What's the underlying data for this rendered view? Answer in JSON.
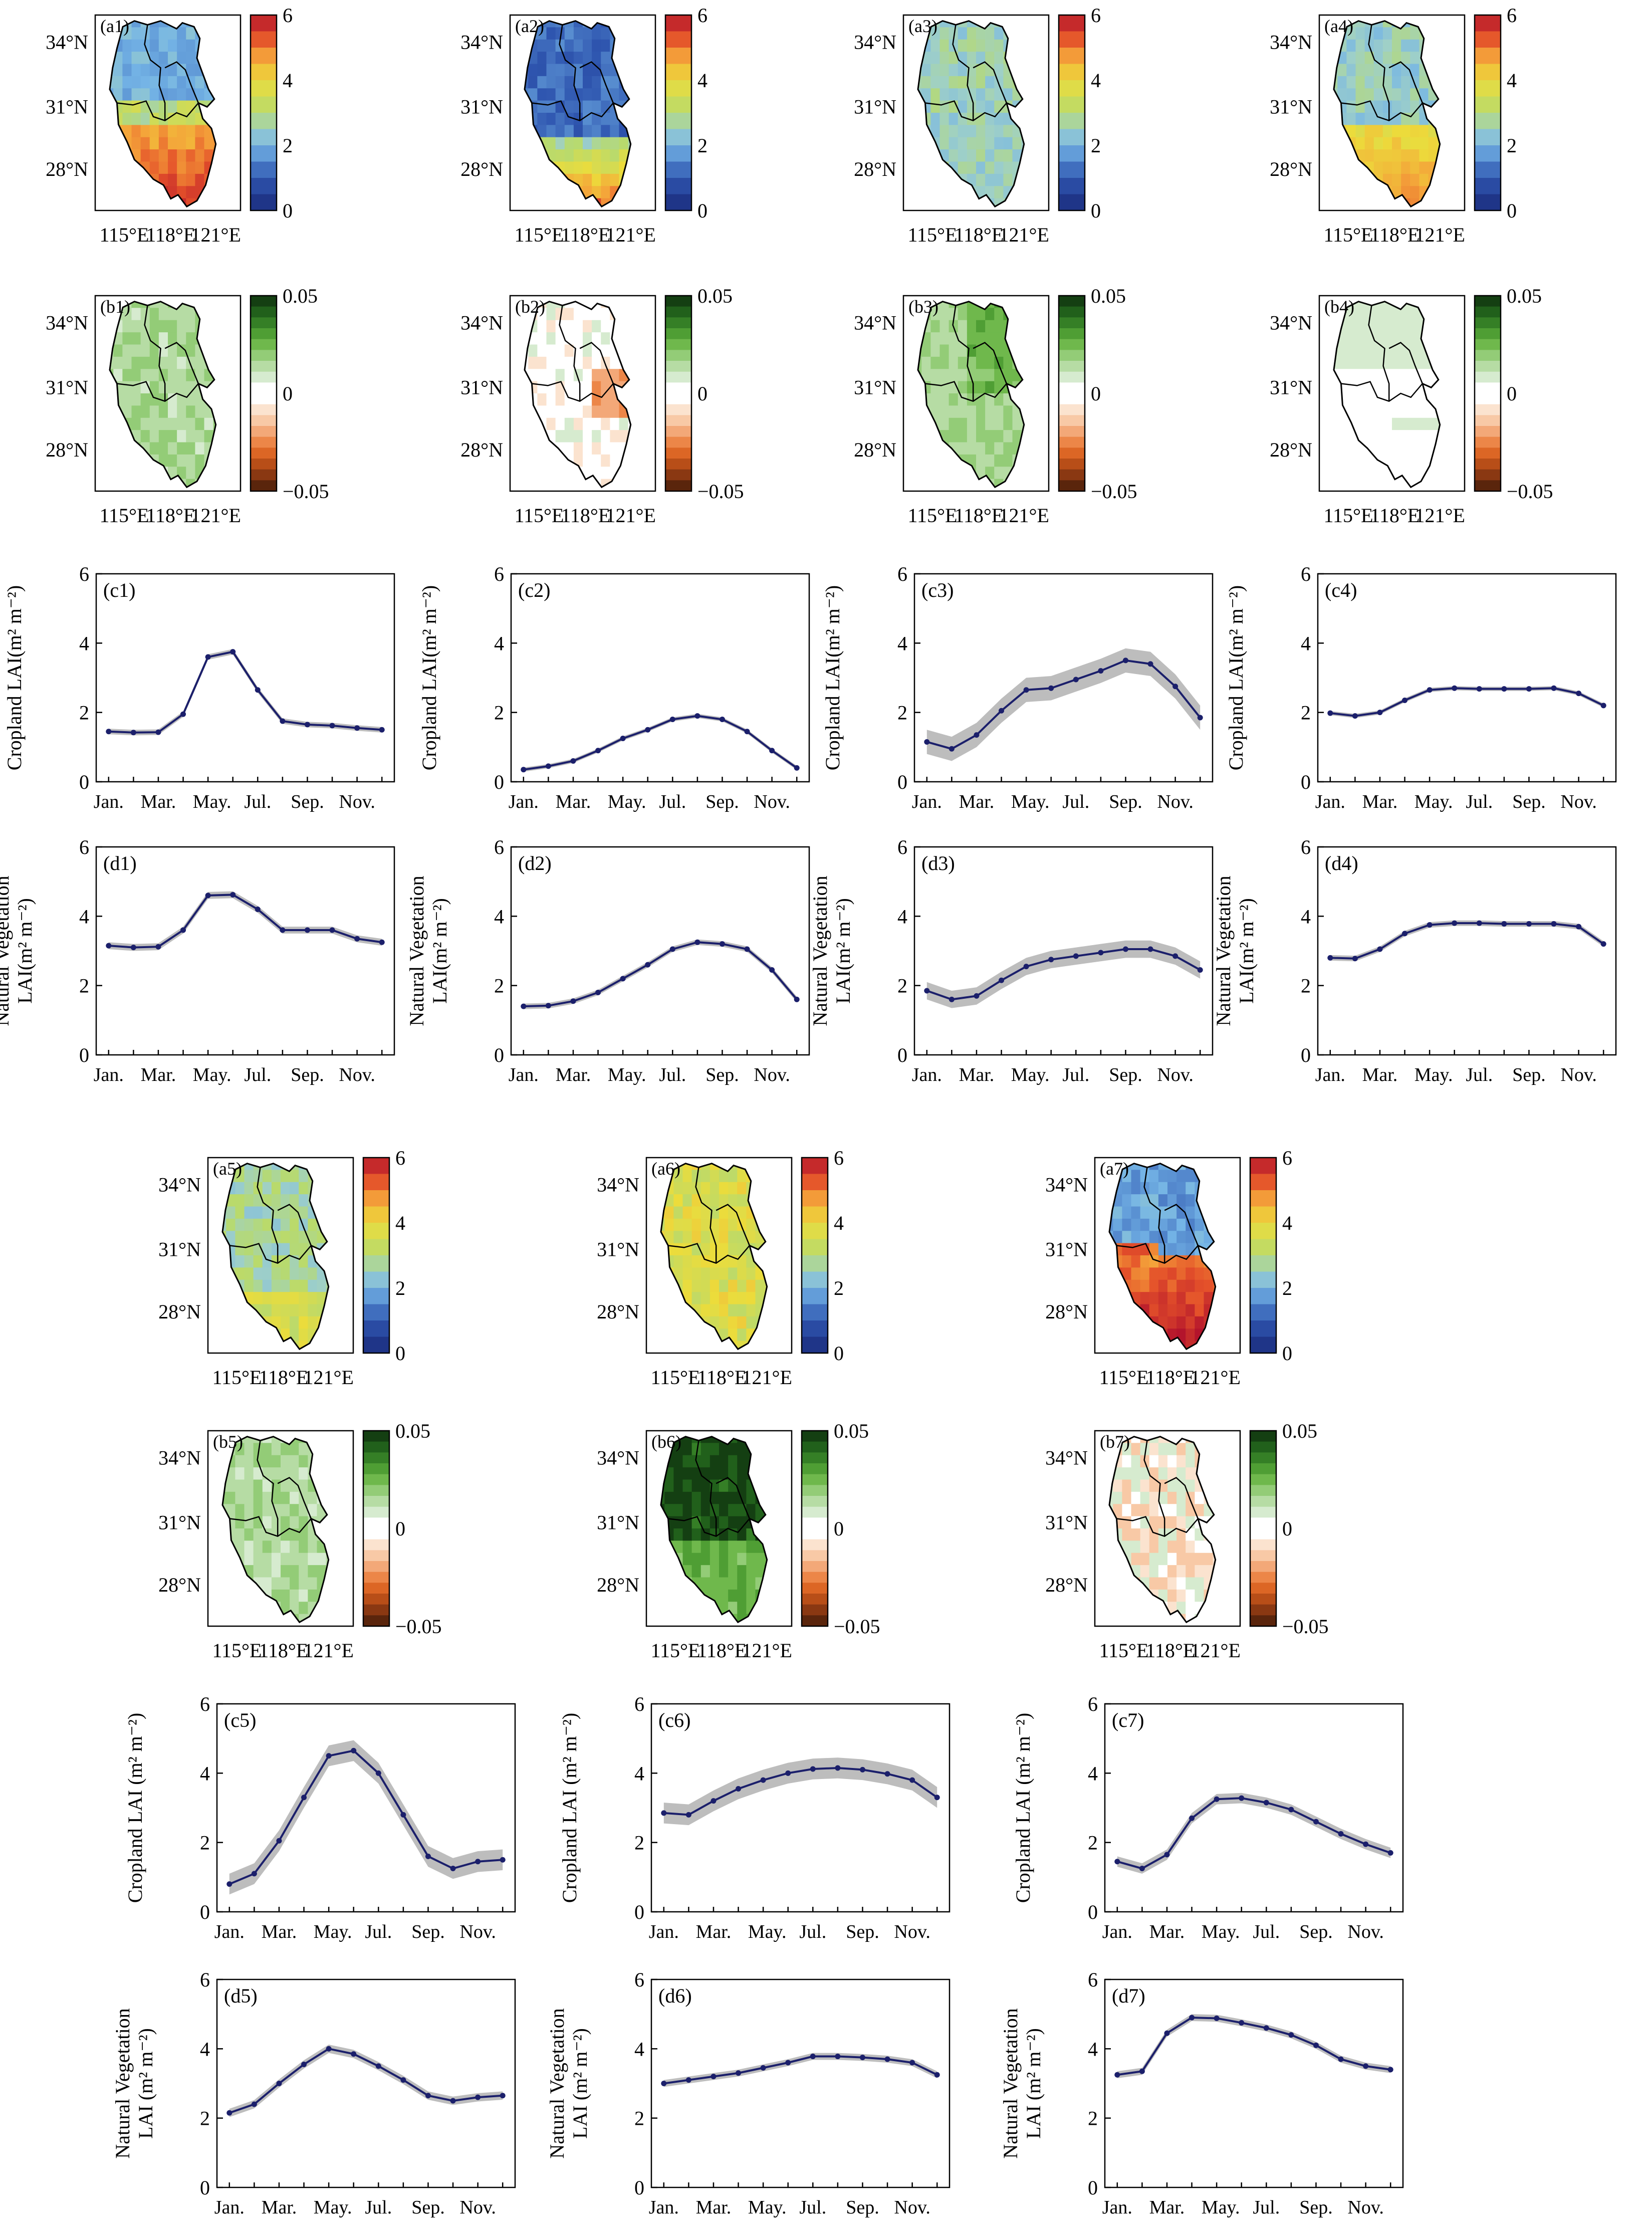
{
  "maps": {
    "lat_labels": [
      "34°N",
      "31°N",
      "28°N"
    ],
    "lon_labels": [
      "115°E",
      "118°E",
      "121°E"
    ],
    "lai_colorbar": {
      "ticks": [
        "0",
        "2",
        "4",
        "6"
      ],
      "range": [
        0,
        6
      ]
    },
    "trend_colorbar": {
      "ticks": [
        "0.05",
        "0",
        "−0.05"
      ],
      "range": [
        -0.05,
        0.05
      ]
    },
    "lai_panels": [
      {
        "label": "(a1)",
        "level": "high_south"
      },
      {
        "label": "(a2)",
        "level": "low_north"
      },
      {
        "label": "(a3)",
        "level": "uniform_low"
      },
      {
        "label": "(a4)",
        "level": "mid_south"
      },
      {
        "label": "(a5)",
        "level": "uniform_mid"
      },
      {
        "label": "(a6)",
        "level": "high_all"
      },
      {
        "label": "(a7)",
        "level": "very_high_south"
      }
    ],
    "trend_panels": [
      {
        "label": "(b1)",
        "pattern": "positive"
      },
      {
        "label": "(b2)",
        "pattern": "slight_negative"
      },
      {
        "label": "(b3)",
        "pattern": "positive_strong"
      },
      {
        "label": "(b4)",
        "pattern": "weak_positive"
      },
      {
        "label": "(b5)",
        "pattern": "positive"
      },
      {
        "label": "(b6)",
        "pattern": "very_positive"
      },
      {
        "label": "(b7)",
        "pattern": "negative"
      }
    ]
  },
  "chart_data": [
    {
      "type": "line",
      "label": "(c1)",
      "ylabel": "Cropland LAI(m² m⁻²)",
      "x_ticks": [
        "Jan.",
        "Mar.",
        "May.",
        "Jul.",
        "Sep.",
        "Nov."
      ],
      "y_ticks": [
        "0",
        "2",
        "4",
        "6"
      ],
      "ylim": [
        0,
        6
      ],
      "x": [
        1,
        2,
        3,
        4,
        5,
        6,
        7,
        8,
        9,
        10,
        11,
        12
      ],
      "values": [
        1.45,
        1.42,
        1.43,
        1.95,
        3.6,
        3.75,
        2.65,
        1.75,
        1.65,
        1.62,
        1.55,
        1.5
      ],
      "band": 0.08
    },
    {
      "type": "line",
      "label": "(c2)",
      "ylabel": "Cropland LAI(m² m⁻²)",
      "x_ticks": [
        "Jan.",
        "Mar.",
        "May.",
        "Jul.",
        "Sep.",
        "Nov."
      ],
      "y_ticks": [
        "0",
        "2",
        "4",
        "6"
      ],
      "ylim": [
        0,
        6
      ],
      "x": [
        1,
        2,
        3,
        4,
        5,
        6,
        7,
        8,
        9,
        10,
        11,
        12
      ],
      "values": [
        0.35,
        0.45,
        0.6,
        0.9,
        1.25,
        1.5,
        1.8,
        1.9,
        1.8,
        1.45,
        0.9,
        0.4
      ],
      "band": 0.06
    },
    {
      "type": "line",
      "label": "(c3)",
      "ylabel": "Cropland LAI(m² m⁻²)",
      "x_ticks": [
        "Jan.",
        "Mar.",
        "May.",
        "Jul.",
        "Sep.",
        "Nov."
      ],
      "y_ticks": [
        "0",
        "2",
        "4",
        "6"
      ],
      "ylim": [
        0,
        6
      ],
      "x": [
        1,
        2,
        3,
        4,
        5,
        6,
        7,
        8,
        9,
        10,
        11,
        12
      ],
      "values": [
        1.15,
        0.95,
        1.35,
        2.05,
        2.65,
        2.7,
        2.95,
        3.2,
        3.5,
        3.4,
        2.75,
        1.85
      ],
      "band": 0.35
    },
    {
      "type": "line",
      "label": "(c4)",
      "ylabel": "Cropland LAI(m² m⁻²)",
      "x_ticks": [
        "Jan.",
        "Mar.",
        "May.",
        "Jul.",
        "Sep.",
        "Nov."
      ],
      "y_ticks": [
        "0",
        "2",
        "4",
        "6"
      ],
      "ylim": [
        0,
        6
      ],
      "x": [
        1,
        2,
        3,
        4,
        5,
        6,
        7,
        8,
        9,
        10,
        11,
        12
      ],
      "values": [
        1.98,
        1.9,
        2.0,
        2.35,
        2.65,
        2.7,
        2.68,
        2.68,
        2.68,
        2.7,
        2.55,
        2.2
      ],
      "band": 0.06
    },
    {
      "type": "line",
      "label": "(d1)",
      "ylabel": [
        "Natural Vegetation",
        "LAI(m² m⁻²)"
      ],
      "x_ticks": [
        "Jan.",
        "Mar.",
        "May.",
        "Jul.",
        "Sep.",
        "Nov."
      ],
      "y_ticks": [
        "0",
        "2",
        "4",
        "6"
      ],
      "ylim": [
        0,
        6
      ],
      "x": [
        1,
        2,
        3,
        4,
        5,
        6,
        7,
        8,
        9,
        10,
        11,
        12
      ],
      "values": [
        3.15,
        3.1,
        3.12,
        3.6,
        4.6,
        4.62,
        4.2,
        3.6,
        3.6,
        3.6,
        3.35,
        3.25
      ],
      "band": 0.1
    },
    {
      "type": "line",
      "label": "(d2)",
      "ylabel": [
        "Natural Vegetation",
        "LAI(m² m⁻²)"
      ],
      "x_ticks": [
        "Jan.",
        "Mar.",
        "May.",
        "Jul.",
        "Sep.",
        "Nov."
      ],
      "y_ticks": [
        "0",
        "2",
        "4",
        "6"
      ],
      "ylim": [
        0,
        6
      ],
      "x": [
        1,
        2,
        3,
        4,
        5,
        6,
        7,
        8,
        9,
        10,
        11,
        12
      ],
      "values": [
        1.4,
        1.42,
        1.55,
        1.8,
        2.2,
        2.6,
        3.05,
        3.25,
        3.2,
        3.05,
        2.45,
        1.6
      ],
      "band": 0.08
    },
    {
      "type": "line",
      "label": "(d3)",
      "ylabel": [
        "Natural Vegetation",
        "LAI(m² m⁻²)"
      ],
      "x_ticks": [
        "Jan.",
        "Mar.",
        "May.",
        "Jul.",
        "Sep.",
        "Nov."
      ],
      "y_ticks": [
        "0",
        "2",
        "4",
        "6"
      ],
      "ylim": [
        0,
        6
      ],
      "x": [
        1,
        2,
        3,
        4,
        5,
        6,
        7,
        8,
        9,
        10,
        11,
        12
      ],
      "values": [
        1.85,
        1.6,
        1.7,
        2.15,
        2.55,
        2.75,
        2.85,
        2.95,
        3.05,
        3.05,
        2.85,
        2.45
      ],
      "band": 0.25
    },
    {
      "type": "line",
      "label": "(d4)",
      "ylabel": [
        "Natural Vegetation",
        "LAI(m² m⁻²)"
      ],
      "x_ticks": [
        "Jan.",
        "Mar.",
        "May.",
        "Jul.",
        "Sep.",
        "Nov."
      ],
      "y_ticks": [
        "0",
        "2",
        "4",
        "6"
      ],
      "ylim": [
        0,
        6
      ],
      "x": [
        1,
        2,
        3,
        4,
        5,
        6,
        7,
        8,
        9,
        10,
        11,
        12
      ],
      "values": [
        2.8,
        2.78,
        3.05,
        3.5,
        3.75,
        3.8,
        3.8,
        3.78,
        3.78,
        3.78,
        3.7,
        3.2
      ],
      "band": 0.08
    },
    {
      "type": "line",
      "label": "(c5)",
      "ylabel": "Cropland LAI (m² m⁻²)",
      "x_ticks": [
        "Jan.",
        "Mar.",
        "May.",
        "Jul.",
        "Sep.",
        "Nov."
      ],
      "y_ticks": [
        "0",
        "2",
        "4",
        "6"
      ],
      "ylim": [
        0,
        6
      ],
      "x": [
        1,
        2,
        3,
        4,
        5,
        6,
        7,
        8,
        9,
        10,
        11,
        12
      ],
      "values": [
        0.8,
        1.1,
        2.05,
        3.3,
        4.5,
        4.65,
        4.0,
        2.8,
        1.6,
        1.25,
        1.45,
        1.5
      ],
      "band": 0.3
    },
    {
      "type": "line",
      "label": "(c6)",
      "ylabel": "Cropland LAI (m² m⁻²)",
      "x_ticks": [
        "Jan.",
        "Mar.",
        "May.",
        "Jul.",
        "Sep.",
        "Nov."
      ],
      "y_ticks": [
        "0",
        "2",
        "4",
        "6"
      ],
      "ylim": [
        0,
        6
      ],
      "x": [
        1,
        2,
        3,
        4,
        5,
        6,
        7,
        8,
        9,
        10,
        11,
        12
      ],
      "values": [
        2.85,
        2.8,
        3.2,
        3.55,
        3.8,
        4.0,
        4.12,
        4.15,
        4.1,
        3.98,
        3.8,
        3.3
      ],
      "band": 0.3
    },
    {
      "type": "line",
      "label": "(c7)",
      "ylabel": "Cropland LAI (m² m⁻²)",
      "x_ticks": [
        "Jan.",
        "Mar.",
        "May.",
        "Jul.",
        "Sep.",
        "Nov."
      ],
      "y_ticks": [
        "0",
        "2",
        "4",
        "6"
      ],
      "ylim": [
        0,
        6
      ],
      "x": [
        1,
        2,
        3,
        4,
        5,
        6,
        7,
        8,
        9,
        10,
        11,
        12
      ],
      "values": [
        1.45,
        1.25,
        1.65,
        2.7,
        3.25,
        3.28,
        3.15,
        2.95,
        2.6,
        2.25,
        1.95,
        1.7
      ],
      "band": 0.15
    },
    {
      "type": "line",
      "label": "(d5)",
      "ylabel": [
        "Natural Vegetation",
        "LAI (m² m⁻²)"
      ],
      "x_ticks": [
        "Jan.",
        "Mar.",
        "May.",
        "Jul.",
        "Sep.",
        "Nov."
      ],
      "y_ticks": [
        "0",
        "2",
        "4",
        "6"
      ],
      "ylim": [
        0,
        6
      ],
      "x": [
        1,
        2,
        3,
        4,
        5,
        6,
        7,
        8,
        9,
        10,
        11,
        12
      ],
      "values": [
        2.15,
        2.4,
        3.0,
        3.55,
        4.0,
        3.85,
        3.5,
        3.1,
        2.65,
        2.5,
        2.6,
        2.65
      ],
      "band": 0.12
    },
    {
      "type": "line",
      "label": "(d6)",
      "ylabel": [
        "Natural Vegetation",
        "LAI (m² m⁻²)"
      ],
      "x_ticks": [
        "Jan.",
        "Mar.",
        "May.",
        "Jul.",
        "Sep.",
        "Nov."
      ],
      "y_ticks": [
        "0",
        "2",
        "4",
        "6"
      ],
      "ylim": [
        0,
        6
      ],
      "x": [
        1,
        2,
        3,
        4,
        5,
        6,
        7,
        8,
        9,
        10,
        11,
        12
      ],
      "values": [
        3.0,
        3.1,
        3.2,
        3.3,
        3.45,
        3.6,
        3.78,
        3.78,
        3.75,
        3.7,
        3.6,
        3.25
      ],
      "band": 0.1
    },
    {
      "type": "line",
      "label": "(d7)",
      "ylabel": [
        "Natural Vegetation",
        "LAI (m² m⁻²)"
      ],
      "x_ticks": [
        "Jan.",
        "Mar.",
        "May.",
        "Jul.",
        "Sep.",
        "Nov."
      ],
      "y_ticks": [
        "0",
        "2",
        "4",
        "6"
      ],
      "ylim": [
        0,
        6
      ],
      "x": [
        1,
        2,
        3,
        4,
        5,
        6,
        7,
        8,
        9,
        10,
        11,
        12
      ],
      "values": [
        3.25,
        3.35,
        4.45,
        4.9,
        4.88,
        4.75,
        4.6,
        4.4,
        4.1,
        3.7,
        3.5,
        3.4
      ],
      "band": 0.1
    }
  ]
}
